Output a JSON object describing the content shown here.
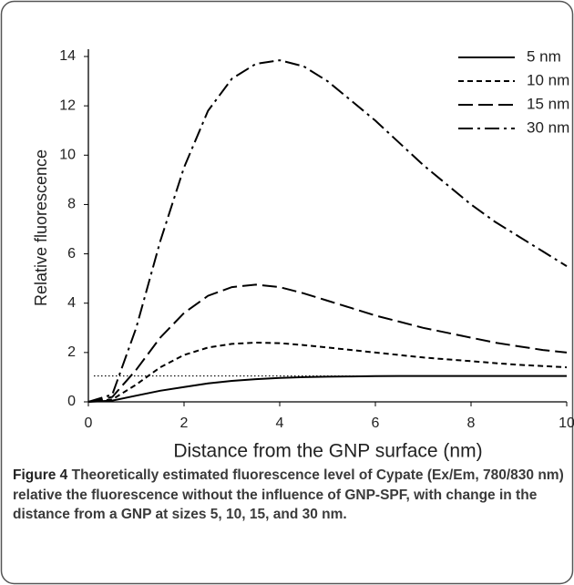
{
  "chart_data": {
    "type": "line",
    "x_label": "Distance from the GNP surface (nm)",
    "y_label": "Relative fluorescence",
    "x": [
      0,
      0.5,
      1,
      1.5,
      2,
      2.5,
      3,
      3.5,
      4,
      4.5,
      5,
      5.5,
      6,
      6.5,
      7,
      7.5,
      8,
      8.5,
      9,
      9.5,
      10
    ],
    "series": [
      {
        "name": "5 nm",
        "color": "#000000",
        "line_style": "solid",
        "values": [
          0,
          0.05,
          0.25,
          0.45,
          0.6,
          0.75,
          0.85,
          0.92,
          0.97,
          1.0,
          1.02,
          1.03,
          1.04,
          1.05,
          1.05,
          1.05,
          1.05,
          1.05,
          1.05,
          1.05,
          1.05
        ]
      },
      {
        "name": "10 nm",
        "color": "#000000",
        "line_style": "dashed",
        "values": [
          0,
          0.1,
          0.7,
          1.4,
          1.9,
          2.2,
          2.35,
          2.4,
          2.38,
          2.3,
          2.2,
          2.1,
          2.0,
          1.9,
          1.8,
          1.72,
          1.65,
          1.57,
          1.5,
          1.45,
          1.4
        ]
      },
      {
        "name": "15 nm",
        "color": "#000000",
        "line_style": "long-dashed",
        "values": [
          0,
          0.2,
          1.3,
          2.6,
          3.6,
          4.3,
          4.65,
          4.75,
          4.65,
          4.4,
          4.1,
          3.8,
          3.5,
          3.25,
          3.0,
          2.8,
          2.6,
          2.4,
          2.25,
          2.1,
          2.0
        ]
      },
      {
        "name": "30 nm",
        "color": "#000000",
        "line_style": "dash-dot",
        "values": [
          0,
          0.3,
          3.0,
          6.5,
          9.5,
          11.8,
          13.1,
          13.7,
          13.85,
          13.6,
          13.0,
          12.2,
          11.4,
          10.5,
          9.6,
          8.8,
          8.0,
          7.3,
          6.7,
          6.1,
          5.5
        ]
      }
    ],
    "reference_line": 1.05,
    "xlim": [
      0,
      10
    ],
    "xticks": [
      0,
      2,
      4,
      6,
      8,
      10
    ],
    "ylim": [
      0,
      14
    ],
    "yticks": [
      0,
      2,
      4,
      6,
      8,
      10,
      12,
      14
    ],
    "legend": "top-right"
  },
  "caption": {
    "label": "Figure 4",
    "text": "Theoretically estimated fluorescence level of Cypate (Ex/Em, 780/830 nm) relative the fluorescence without the influence of GNP-SPF, with change in the distance from a GNP at sizes 5, 10, 15, and 30 nm."
  }
}
